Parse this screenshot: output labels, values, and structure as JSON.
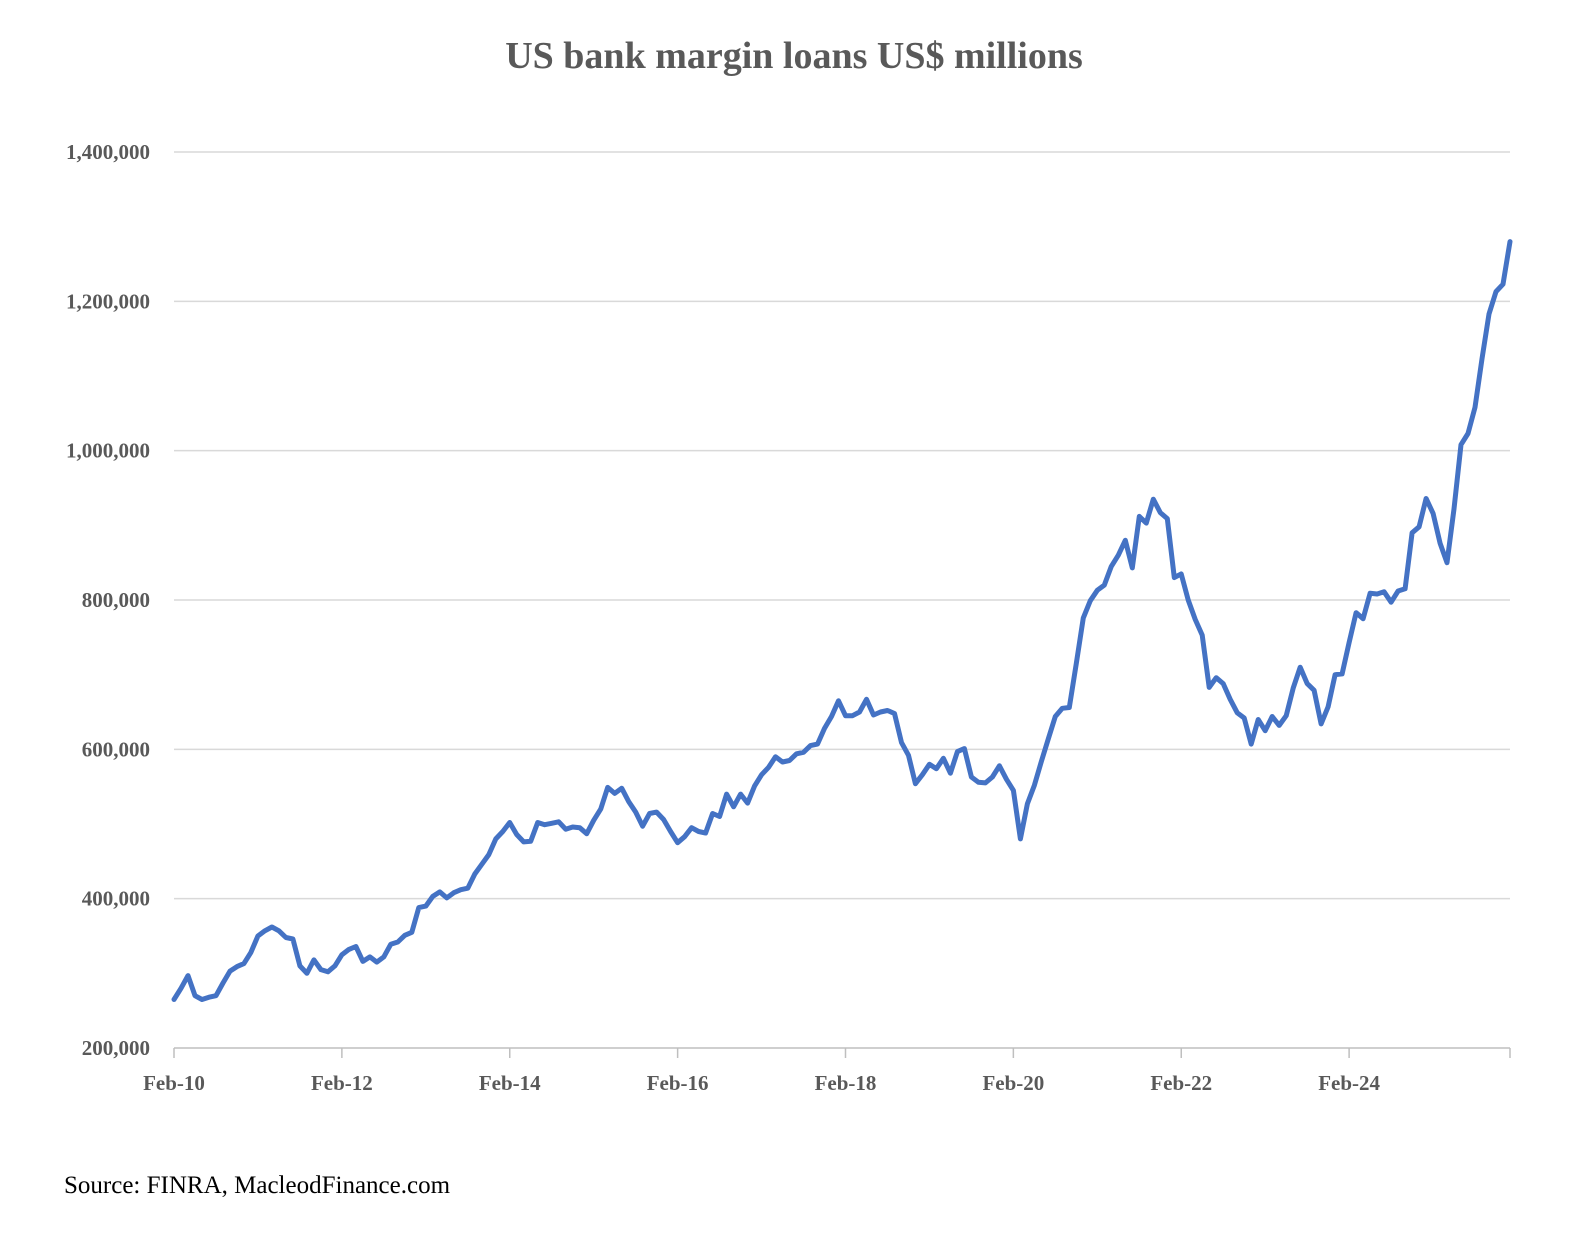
{
  "chart_data": {
    "type": "line",
    "title": "US bank margin loans US$ millions",
    "source": "Source: FINRA, MacleodFinance.com",
    "xlabel": "",
    "ylabel": "",
    "ylim": [
      200000,
      1400000
    ],
    "yticks": [
      200000,
      400000,
      600000,
      800000,
      1000000,
      1200000,
      1400000
    ],
    "ytick_labels": [
      "200,000",
      "400,000",
      "600,000",
      "800,000",
      "1,000,000",
      "1,200,000",
      "1,400,000"
    ],
    "xtick_labels": [
      "Feb-10",
      "Feb-12",
      "Feb-14",
      "Feb-16",
      "Feb-18",
      "Feb-20",
      "Feb-22",
      "Feb-24"
    ],
    "x_start": "Feb-10",
    "x_end": "Dec-25",
    "grid": true,
    "colors": {
      "line": "#4472C4",
      "grid": "#D9D9D9",
      "axis": "#BFBFBF",
      "text": "#595959"
    },
    "series": [
      {
        "values": [
          265000,
          280000,
          297000,
          270000,
          265000,
          268000,
          270000,
          287000,
          303000,
          309000,
          313000,
          328000,
          350000,
          357000,
          362000,
          357000,
          348000,
          346000,
          310000,
          300000,
          318000,
          305000,
          302000,
          310000,
          325000,
          332000,
          336000,
          316000,
          322000,
          315000,
          322000,
          339000,
          342000,
          351000,
          355000,
          388000,
          390000,
          403000,
          409000,
          401000,
          408000,
          412000,
          414000,
          433000,
          446000,
          459000,
          480000,
          490000,
          502000,
          486000,
          476000,
          477000,
          502000,
          499000,
          501000,
          503000,
          493000,
          496000,
          495000,
          487000,
          505000,
          520000,
          549000,
          541000,
          548000,
          530000,
          516000,
          497000,
          514000,
          516000,
          506000,
          490000,
          475000,
          483000,
          495000,
          490000,
          488000,
          514000,
          510000,
          540000,
          523000,
          540000,
          528000,
          551000,
          566000,
          576000,
          590000,
          583000,
          585000,
          594000,
          596000,
          605000,
          607000,
          628000,
          644000,
          665000,
          645000,
          645000,
          650000,
          667000,
          646000,
          650000,
          652000,
          648000,
          609000,
          592000,
          554000,
          566000,
          580000,
          574000,
          588000,
          568000,
          597000,
          601000,
          563000,
          556000,
          555000,
          563000,
          578000,
          560000,
          545000,
          480000,
          527000,
          552000,
          584000,
          614000,
          644000,
          655000,
          656000,
          715000,
          776000,
          799000,
          813000,
          820000,
          845000,
          860000,
          880000,
          843000,
          912000,
          903000,
          935000,
          917000,
          909000,
          830000,
          835000,
          800000,
          774000,
          753000,
          683000,
          696000,
          688000,
          667000,
          649000,
          642000,
          607000,
          640000,
          625000,
          644000,
          632000,
          645000,
          682000,
          710000,
          688000,
          679000,
          634000,
          657000,
          700000,
          701000,
          743000,
          783000,
          775000,
          809000,
          808000,
          811000,
          797000,
          812000,
          815000,
          890000,
          898000,
          936000,
          916000,
          876000,
          850000,
          922000,
          1008000,
          1023000,
          1058000,
          1123000,
          1183000,
          1213000,
          1223000,
          1280000
        ]
      }
    ]
  }
}
